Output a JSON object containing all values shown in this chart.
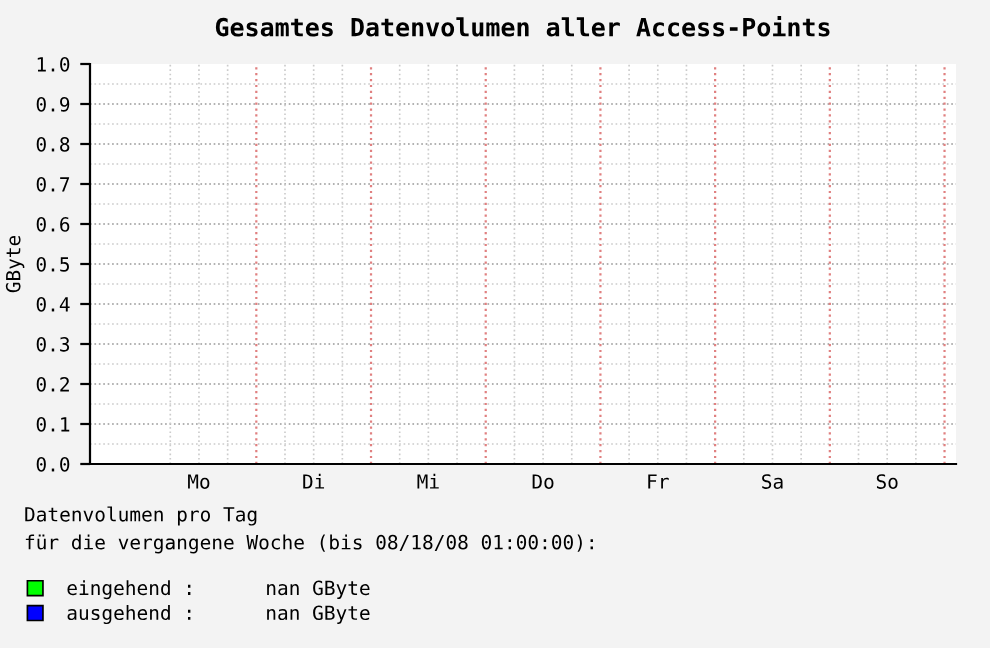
{
  "chart_data": {
    "type": "line",
    "title": "Gesamtes Datenvolumen aller Access-Points",
    "ylabel": "GByte",
    "categories": [
      "Mo",
      "Di",
      "Mi",
      "Do",
      "Fr",
      "Sa",
      "So"
    ],
    "series": [
      {
        "name": "eingehend :      nan GByte",
        "color": "#00ff00",
        "values": [
          null,
          null,
          null,
          null,
          null,
          null,
          null
        ]
      },
      {
        "name": "ausgehend :      nan GByte",
        "color": "#0000ff",
        "values": [
          null,
          null,
          null,
          null,
          null,
          null,
          null
        ]
      }
    ],
    "ylim": [
      0,
      1.0
    ],
    "yticks": [
      {
        "value": 0,
        "label": "0.0"
      },
      0.1,
      0.2,
      0.3,
      0.4,
      0.5,
      0.6,
      0.7,
      0.8,
      0.9,
      {
        "value": 1.0,
        "label": "1.0"
      }
    ],
    "grid": true,
    "legend": "bottom left",
    "annotations": [
      "Datenvolumen pro Tag",
      "für die vergangene Woche (bis 08/18/08 01:00:00):"
    ]
  }
}
